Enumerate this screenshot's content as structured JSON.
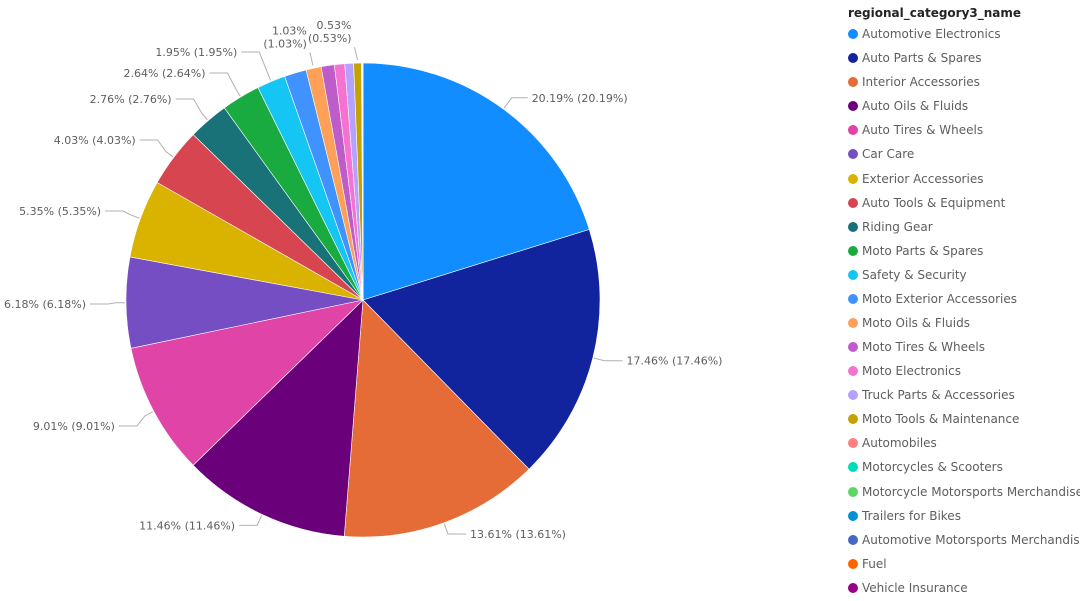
{
  "chart_data": {
    "type": "pie",
    "legend_title": "regional_category3_name",
    "legend_position": "right",
    "categories": [
      "Automotive Electronics",
      "Auto Parts & Spares",
      "Interior Accessories",
      "Auto Oils & Fluids",
      "Auto Tires & Wheels",
      "Car Care",
      "Exterior Accessories",
      "Auto Tools & Equipment",
      "Riding Gear",
      "Moto Parts & Spares",
      "Safety & Security",
      "Moto Exterior Accessories",
      "Moto Oils & Fluids",
      "Moto Tires & Wheels",
      "Moto Electronics",
      "Truck Parts & Accessories",
      "Moto Tools & Maintenance",
      "Automobiles",
      "Motorcycles & Scooters",
      "Motorcycle Motorsports Merchandise",
      "Trailers for Bikes",
      "Automotive Motorsports Merchandise",
      "Fuel",
      "Vehicle Insurance"
    ],
    "values": [
      20.19,
      17.46,
      13.61,
      11.46,
      9.01,
      6.18,
      5.35,
      4.03,
      2.76,
      2.64,
      1.95,
      1.5,
      1.03,
      0.9,
      0.7,
      0.6,
      0.53,
      0.03,
      0.02,
      0.01,
      0.01,
      0.01,
      0.01,
      0.01
    ],
    "colors": [
      "#118DFF",
      "#12239E",
      "#E66C37",
      "#6B007B",
      "#E044A7",
      "#744EC2",
      "#D9B300",
      "#D64550",
      "#197278",
      "#1AAB40",
      "#15C6F4",
      "#4092FF",
      "#FFA058",
      "#BE5DC9",
      "#F472D0",
      "#B5A1FF",
      "#C4A200",
      "#FF8080",
      "#00DBBC",
      "#5BD667",
      "#0091D5",
      "#4668C5",
      "#FF6300",
      "#99008A"
    ],
    "data_labels": [
      {
        "index": 0,
        "text": "20.19% (20.19%)"
      },
      {
        "index": 1,
        "text": "17.46% (17.46%)"
      },
      {
        "index": 2,
        "text": "13.61% (13.61%)"
      },
      {
        "index": 3,
        "text": "11.46% (11.46%)"
      },
      {
        "index": 4,
        "text": "9.01% (9.01%)"
      },
      {
        "index": 5,
        "text": "6.18% (6.18%)"
      },
      {
        "index": 6,
        "text": "5.35% (5.35%)"
      },
      {
        "index": 7,
        "text": "4.03% (4.03%)"
      },
      {
        "index": 8,
        "text": "2.76% (2.76%)"
      },
      {
        "index": 9,
        "text": "2.64% (2.64%)"
      },
      {
        "index": 10,
        "text": "1.95% (1.95%)"
      },
      {
        "index": 12,
        "lines": [
          "1.03%",
          "(1.03%)"
        ]
      },
      {
        "index": 16,
        "lines": [
          "0.53%",
          "(0.53%)"
        ]
      }
    ]
  }
}
